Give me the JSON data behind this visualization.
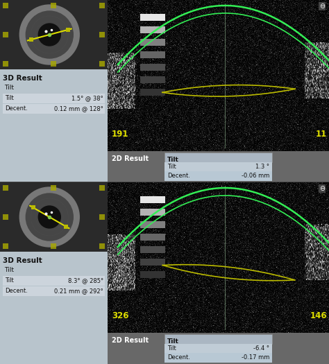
{
  "figsize": [
    4.74,
    5.25
  ],
  "dpi": 100,
  "panel1": {
    "result_title": "3D Result",
    "tilt_label": "Tilt",
    "tilt_row1_label": "Tilt",
    "tilt_row1_value": "1.5° @ 38°",
    "decent_label": "Decent.",
    "decent_value": "0.12 mm @ 128°",
    "result_2d_label": "2D Result",
    "tilt_2d_label": "Tilt",
    "tilt_2d_row_label": "Tilt",
    "tilt_2d_value": "1.3 °",
    "decent_2d_label": "Decent.",
    "decent_2d_value": "-0.06 mm",
    "num_left": "191",
    "num_right": "11",
    "lens_tilt_deg": 1.5
  },
  "panel2": {
    "result_title": "3D Result",
    "tilt_label": "Tilt",
    "tilt_row1_label": "Tilt",
    "tilt_row1_value": "8.3° @ 285°",
    "decent_label": "Decent.",
    "decent_value": "0.21 mm @ 292°",
    "result_2d_label": "2D Result",
    "tilt_2d_label": "Tilt",
    "tilt_2d_row_label": "Tilt",
    "tilt_2d_value": "-6.4 °",
    "decent_2d_label": "Decent.",
    "decent_2d_value": "-0.17 mm",
    "num_left": "326",
    "num_right": "146",
    "lens_tilt_deg": -6.4
  },
  "colors": {
    "left_panel_bg": "#b8c4cc",
    "eye_bg": "#2a2a2a",
    "oct_bg": "#050505",
    "green_line": "#33dd55",
    "yellow_line": "#bbbb00",
    "text_white": "#ffffff",
    "text_yellow": "#cccc00",
    "text_dark": "#111111",
    "table_row_bg": "#ccd4dc",
    "result_2d_bg": "#6a6a6a",
    "result_2d_table_bg": "#c8d0d8",
    "sep_color": "#444444"
  }
}
